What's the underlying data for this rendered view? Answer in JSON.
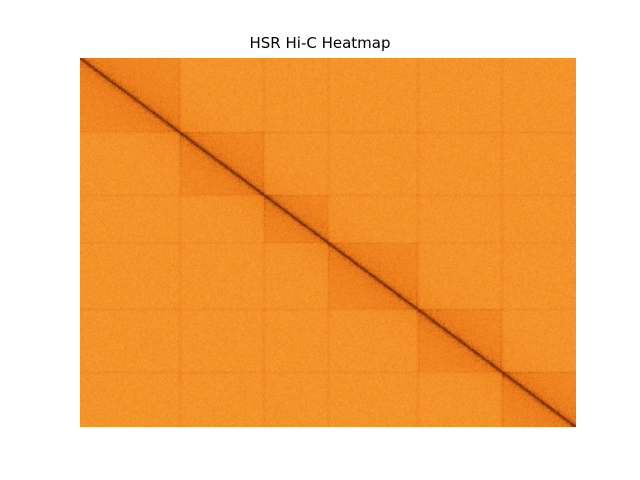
{
  "chart_data": {
    "type": "heatmap",
    "title": "HSR Hi-C Heatmap",
    "xlabel": "",
    "ylabel": "",
    "grid": false,
    "axes_visible": false,
    "colormap": "YlOrBr",
    "colors": {
      "low": "#fdae3b",
      "mid": "#ec7a1a",
      "high": "#7a2a05",
      "background": "#ffffff"
    },
    "structure": {
      "diagonal": "strong contact band along main diagonal (top-left to bottom-right)",
      "domain_boundaries_fraction": [
        0,
        0.2,
        0.37,
        0.5,
        0.68,
        0.85,
        1.0
      ]
    }
  }
}
